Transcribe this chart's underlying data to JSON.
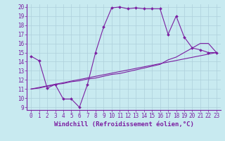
{
  "background_color": "#c8eaf0",
  "line_color": "#7b1fa2",
  "grid_color": "#aecfdb",
  "xlim": [
    -0.5,
    23.5
  ],
  "ylim": [
    8.7,
    20.3
  ],
  "yticks": [
    9,
    10,
    11,
    12,
    13,
    14,
    15,
    16,
    17,
    18,
    19,
    20
  ],
  "xticks": [
    0,
    1,
    2,
    3,
    4,
    5,
    6,
    7,
    8,
    9,
    10,
    11,
    12,
    13,
    14,
    15,
    16,
    17,
    18,
    19,
    20,
    21,
    22,
    23
  ],
  "line1_x": [
    0,
    1,
    2,
    3,
    4,
    5,
    6,
    7,
    8,
    9,
    10,
    11,
    12,
    13,
    14,
    15,
    16,
    17,
    18,
    19,
    20,
    21,
    22,
    23
  ],
  "line1_y": [
    14.6,
    14.1,
    11.1,
    11.5,
    9.9,
    9.9,
    9.0,
    11.5,
    15.0,
    17.8,
    19.9,
    20.0,
    19.8,
    19.9,
    19.8,
    19.8,
    19.8,
    17.0,
    19.0,
    16.7,
    15.5,
    15.3,
    15.0,
    15.0
  ],
  "line2_x": [
    0,
    1,
    2,
    3,
    4,
    5,
    6,
    7,
    8,
    9,
    10,
    11,
    12,
    13,
    14,
    15,
    16,
    17,
    18,
    19,
    20,
    21,
    22,
    23
  ],
  "line2_y": [
    11.0,
    11.1,
    11.3,
    11.5,
    11.6,
    11.8,
    11.9,
    12.1,
    12.2,
    12.4,
    12.6,
    12.7,
    12.9,
    13.1,
    13.3,
    13.5,
    13.7,
    14.2,
    14.5,
    15.0,
    15.5,
    16.0,
    16.0,
    15.0
  ],
  "line3_x": [
    0,
    23
  ],
  "line3_y": [
    11.0,
    15.0
  ],
  "xlabel": "Windchill (Refroidissement éolien,°C)",
  "fontsize_xlabel": 6.5,
  "fontsize_ticks": 5.5
}
